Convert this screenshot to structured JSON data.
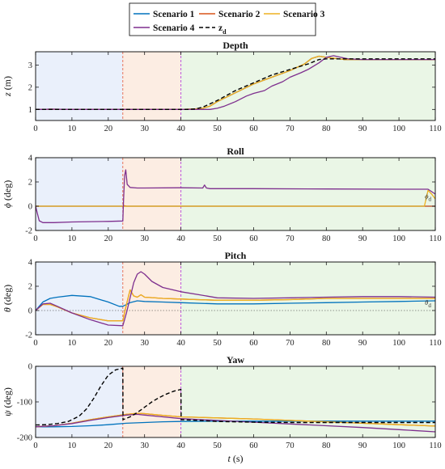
{
  "legend": {
    "entries": [
      {
        "label": "Scenario 1",
        "color": "#0072BD",
        "dash": ""
      },
      {
        "label": "Scenario 2",
        "color": "#D95319",
        "dash": ""
      },
      {
        "label": "Scenario 3",
        "color": "#EDB120",
        "dash": ""
      },
      {
        "label": "Scenario 4",
        "color": "#7E2F8E",
        "dash": ""
      },
      {
        "label": "z_d",
        "color": "#000000",
        "dash": "5,3"
      }
    ]
  },
  "phases": {
    "boundaries": [
      24,
      40
    ],
    "boundary_colors": [
      "#E8684A",
      "#B24BDB"
    ],
    "colors": [
      "#EAF0FB",
      "#FCEDE3",
      "#EAF6E6"
    ]
  },
  "chart_data": [
    {
      "type": "line",
      "title": "Depth",
      "ylabel": "z (m)",
      "xlabel": "",
      "xlim": [
        0,
        110
      ],
      "ylim": [
        0.5,
        3.6
      ],
      "yticks": [
        1,
        2,
        3
      ],
      "xticks": [
        0,
        10,
        20,
        30,
        40,
        50,
        60,
        70,
        80,
        90,
        100,
        110
      ],
      "series": [
        {
          "name": "Scenario 1",
          "color": "#0072BD",
          "x": [
            0,
            2,
            4,
            10,
            20,
            30,
            40,
            42,
            44,
            46,
            48,
            50,
            55,
            60,
            65,
            70,
            74,
            76,
            78,
            80,
            85,
            90,
            100,
            110
          ],
          "y": [
            1.0,
            1.0,
            1.01,
            1.0,
            1.0,
            1.0,
            1.0,
            1.01,
            1.02,
            1.05,
            1.15,
            1.35,
            1.75,
            2.15,
            2.45,
            2.75,
            3.05,
            3.3,
            3.4,
            3.35,
            3.25,
            3.25,
            3.25,
            3.25
          ]
        },
        {
          "name": "Scenario 2",
          "color": "#D95319",
          "x": [
            0,
            2,
            4,
            10,
            20,
            30,
            40,
            42,
            44,
            46,
            48,
            50,
            55,
            60,
            65,
            70,
            74,
            76,
            78,
            80,
            85,
            90,
            100,
            110
          ],
          "y": [
            1.0,
            1.0,
            1.01,
            1.0,
            1.0,
            1.0,
            1.0,
            1.01,
            1.02,
            1.05,
            1.15,
            1.35,
            1.75,
            2.15,
            2.45,
            2.75,
            3.05,
            3.3,
            3.4,
            3.35,
            3.25,
            3.25,
            3.25,
            3.25
          ]
        },
        {
          "name": "Scenario 3",
          "color": "#EDB120",
          "x": [
            0,
            2,
            4,
            10,
            20,
            30,
            40,
            42,
            44,
            46,
            48,
            50,
            55,
            60,
            65,
            70,
            74,
            76,
            78,
            80,
            85,
            90,
            100,
            110
          ],
          "y": [
            1.0,
            1.0,
            1.01,
            1.0,
            1.0,
            1.0,
            1.0,
            1.01,
            1.02,
            1.05,
            1.15,
            1.35,
            1.75,
            2.15,
            2.45,
            2.75,
            3.05,
            3.3,
            3.4,
            3.35,
            3.25,
            3.25,
            3.25,
            3.25
          ]
        },
        {
          "name": "Scenario 4",
          "color": "#7E2F8E",
          "x": [
            0,
            2,
            4,
            10,
            20,
            30,
            40,
            45,
            48,
            50,
            52,
            55,
            58,
            60,
            63,
            65,
            68,
            70,
            73,
            75,
            78,
            80,
            82,
            84,
            86,
            90,
            100,
            110
          ],
          "y": [
            1.0,
            1.0,
            1.01,
            1.0,
            1.0,
            1.0,
            1.0,
            1.0,
            1.0,
            1.05,
            1.15,
            1.35,
            1.6,
            1.72,
            1.85,
            2.05,
            2.25,
            2.45,
            2.65,
            2.8,
            3.1,
            3.35,
            3.42,
            3.35,
            3.28,
            3.25,
            3.25,
            3.25
          ]
        },
        {
          "name": "z_d",
          "color": "#000000",
          "dash": "5,3",
          "x": [
            0,
            10,
            20,
            30,
            40,
            42,
            44,
            46,
            50,
            55,
            60,
            65,
            70,
            75,
            78,
            80,
            85,
            90,
            100,
            110
          ],
          "y": [
            1.0,
            1.0,
            1.0,
            1.0,
            1.0,
            1.0,
            1.02,
            1.1,
            1.4,
            1.85,
            2.2,
            2.55,
            2.8,
            3.05,
            3.25,
            3.28,
            3.28,
            3.28,
            3.28,
            3.28
          ]
        }
      ]
    },
    {
      "type": "line",
      "title": "Roll",
      "ylabel": "ϕ (deg)",
      "xlabel": "",
      "xlim": [
        0,
        110
      ],
      "ylim": [
        -2,
        4
      ],
      "yticks": [
        -2,
        0,
        2,
        4
      ],
      "xticks": [
        0,
        10,
        20,
        30,
        40,
        50,
        60,
        70,
        80,
        90,
        100,
        110
      ],
      "annotation": {
        "text": "ϕd",
        "x": 108,
        "y": 0.5
      },
      "ref_line": 0,
      "series": [
        {
          "name": "Scenario 1",
          "color": "#0072BD",
          "x": [
            0,
            110
          ],
          "y": [
            0.0,
            0.0
          ]
        },
        {
          "name": "Scenario 2",
          "color": "#D95319",
          "x": [
            0,
            24,
            24.3,
            25,
            110
          ],
          "y": [
            0.0,
            0.0,
            0.05,
            0.0,
            0.0
          ]
        },
        {
          "name": "Scenario 3",
          "color": "#EDB120",
          "x": [
            0,
            107,
            108,
            109,
            110
          ],
          "y": [
            0.0,
            0.0,
            1.3,
            1.0,
            0.6
          ]
        },
        {
          "name": "Scenario 4",
          "color": "#7E2F8E",
          "x": [
            0,
            0.5,
            1,
            2,
            5,
            10,
            20,
            24,
            24.2,
            24.5,
            24.8,
            25.2,
            26,
            28,
            30,
            40,
            46,
            46.5,
            47,
            48,
            60,
            80,
            100,
            107,
            108,
            109,
            110
          ],
          "y": [
            0.0,
            -0.6,
            -1.2,
            -1.35,
            -1.35,
            -1.3,
            -1.25,
            -1.22,
            0.5,
            2.5,
            3.0,
            1.8,
            1.55,
            1.5,
            1.5,
            1.52,
            1.5,
            1.75,
            1.5,
            1.45,
            1.45,
            1.42,
            1.4,
            1.4,
            1.4,
            1.2,
            1.0
          ]
        }
      ]
    },
    {
      "type": "line",
      "title": "Pitch",
      "ylabel": "θ (deg)",
      "xlabel": "",
      "xlim": [
        0,
        110
      ],
      "ylim": [
        -2,
        4
      ],
      "yticks": [
        -2,
        0,
        2,
        4
      ],
      "xticks": [
        0,
        10,
        20,
        30,
        40,
        50,
        60,
        70,
        80,
        90,
        100,
        110
      ],
      "annotation": {
        "text": "θd",
        "x": 108,
        "y": 0.35
      },
      "ref_line": 0,
      "series": [
        {
          "name": "Scenario 1",
          "color": "#0072BD",
          "x": [
            0,
            2,
            4,
            6,
            10,
            15,
            20,
            23,
            24,
            26,
            28,
            30,
            35,
            40,
            50,
            60,
            70,
            80,
            90,
            100,
            110
          ],
          "y": [
            0.0,
            0.7,
            1.0,
            1.1,
            1.25,
            1.15,
            0.7,
            0.35,
            0.35,
            0.65,
            0.8,
            0.75,
            0.7,
            0.65,
            0.55,
            0.55,
            0.6,
            0.65,
            0.7,
            0.75,
            0.8
          ]
        },
        {
          "name": "Scenario 2",
          "color": "#D95319",
          "x": [
            0,
            2,
            4,
            6,
            10,
            15,
            20,
            24,
            25,
            26,
            27,
            28,
            29,
            30,
            35,
            40,
            50,
            60,
            70,
            80,
            90,
            100,
            110
          ],
          "y": [
            0.0,
            0.5,
            0.5,
            0.3,
            -0.2,
            -0.6,
            -0.85,
            -0.85,
            0.5,
            1.7,
            1.2,
            1.1,
            1.3,
            1.1,
            1.0,
            0.95,
            0.85,
            0.85,
            0.9,
            1.0,
            1.0,
            1.0,
            1.0
          ]
        },
        {
          "name": "Scenario 3",
          "color": "#EDB120",
          "x": [
            0,
            2,
            4,
            6,
            10,
            15,
            20,
            24,
            25,
            26,
            27,
            28,
            29,
            30,
            35,
            40,
            50,
            60,
            70,
            80,
            90,
            100,
            110
          ],
          "y": [
            0.0,
            0.5,
            0.5,
            0.3,
            -0.2,
            -0.6,
            -0.85,
            -0.85,
            0.5,
            1.7,
            1.2,
            1.1,
            1.3,
            1.1,
            1.0,
            0.95,
            0.85,
            0.85,
            0.9,
            1.0,
            1.0,
            1.0,
            1.0
          ]
        },
        {
          "name": "Scenario 4",
          "color": "#7E2F8E",
          "x": [
            0,
            2,
            4,
            6,
            10,
            15,
            20,
            24,
            25,
            27,
            28,
            29,
            30,
            32,
            35,
            40,
            45,
            50,
            60,
            70,
            80,
            90,
            100,
            110
          ],
          "y": [
            0.0,
            0.55,
            0.6,
            0.35,
            -0.2,
            -0.75,
            -1.2,
            -1.25,
            -0.2,
            2.3,
            3.0,
            3.2,
            3.0,
            2.4,
            1.9,
            1.55,
            1.3,
            1.05,
            1.0,
            1.05,
            1.1,
            1.15,
            1.15,
            1.1
          ]
        }
      ]
    },
    {
      "type": "line",
      "title": "Yaw",
      "ylabel": "ψ (deg)",
      "xlabel": "t (s)",
      "xlim": [
        0,
        110
      ],
      "ylim": [
        -200,
        0
      ],
      "yticks": [
        -200,
        -100,
        0
      ],
      "xticks": [
        0,
        10,
        20,
        30,
        40,
        50,
        60,
        70,
        80,
        90,
        100,
        110
      ],
      "series": [
        {
          "name": "Scenario 1",
          "color": "#0072BD",
          "x": [
            0,
            5,
            10,
            15,
            20,
            25,
            30,
            35,
            40,
            50,
            60,
            70,
            80,
            90,
            100,
            110
          ],
          "y": [
            -170,
            -170,
            -169,
            -167,
            -164,
            -160,
            -158,
            -156,
            -155,
            -154,
            -154,
            -154,
            -154,
            -154,
            -154,
            -154
          ]
        },
        {
          "name": "Scenario 2",
          "color": "#D95319",
          "x": [
            0,
            5,
            10,
            15,
            20,
            25,
            28,
            30,
            35,
            40,
            50,
            60,
            70,
            80,
            90,
            100,
            110
          ],
          "y": [
            -170,
            -167,
            -160,
            -150,
            -142,
            -135,
            -132,
            -133,
            -138,
            -142,
            -145,
            -148,
            -152,
            -156,
            -160,
            -164,
            -168
          ]
        },
        {
          "name": "Scenario 3",
          "color": "#EDB120",
          "x": [
            0,
            5,
            10,
            15,
            20,
            25,
            28,
            30,
            35,
            40,
            50,
            60,
            70,
            80,
            90,
            100,
            110
          ],
          "y": [
            -170,
            -167,
            -160,
            -150,
            -142,
            -135,
            -132,
            -133,
            -138,
            -142,
            -145,
            -148,
            -152,
            -156,
            -160,
            -164,
            -168
          ]
        },
        {
          "name": "Scenario 4",
          "color": "#7E2F8E",
          "x": [
            0,
            5,
            10,
            15,
            20,
            25,
            28,
            30,
            35,
            40,
            50,
            60,
            70,
            80,
            90,
            100,
            110
          ],
          "y": [
            -170,
            -167,
            -161,
            -152,
            -144,
            -137,
            -135,
            -137,
            -142,
            -147,
            -152,
            -157,
            -162,
            -167,
            -172,
            -178,
            -184
          ]
        },
        {
          "name": "z_d",
          "color": "#000000",
          "dash": "5,3",
          "x": [
            0,
            3,
            6,
            9,
            12,
            14,
            16,
            18,
            20,
            22,
            24,
            24.05,
            26,
            28,
            30,
            32,
            34,
            36,
            38,
            40,
            40.05,
            45,
            50,
            60,
            70,
            80,
            90,
            100,
            110
          ],
          "y": [
            -165,
            -164,
            -161,
            -155,
            -140,
            -120,
            -90,
            -55,
            -25,
            -10,
            -5,
            -150,
            -142,
            -130,
            -115,
            -100,
            -88,
            -78,
            -70,
            -65,
            -150,
            -152,
            -155,
            -157,
            -158,
            -158,
            -158,
            -158,
            -158
          ]
        }
      ]
    }
  ]
}
